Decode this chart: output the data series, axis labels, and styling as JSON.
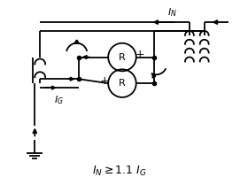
{
  "background_color": "#ffffff",
  "line_color": "#000000",
  "figsize": [
    2.71,
    2.09
  ],
  "dpi": 100,
  "annotation": "I_N >= 1.1 I_G"
}
